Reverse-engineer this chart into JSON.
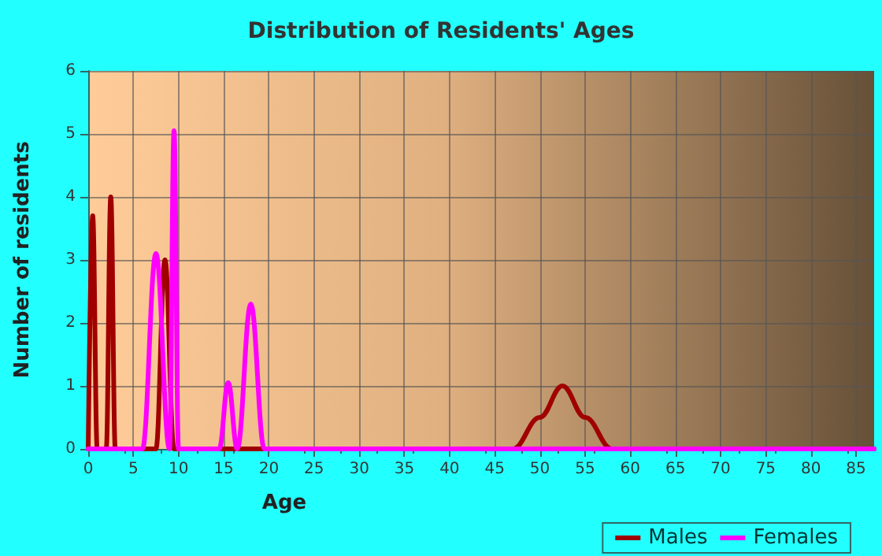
{
  "chart_data": {
    "type": "line",
    "title": "Distribution of Residents' Ages",
    "xlabel": "Age",
    "ylabel": "Number of residents",
    "series": [
      {
        "name": "Males",
        "color": "#a00000",
        "x": [
          0,
          0.5,
          1,
          2,
          2.5,
          3,
          4,
          7.5,
          8.5,
          9.5,
          10,
          47,
          50,
          52.5,
          55,
          58,
          87
        ],
        "values": [
          0,
          3.7,
          0,
          0,
          4,
          0,
          0,
          0,
          3,
          0,
          0,
          0,
          0.5,
          1,
          0.5,
          0,
          0
        ]
      },
      {
        "name": "Females",
        "color": "#ff00ff",
        "x": [
          0,
          6,
          7.5,
          9,
          9.5,
          10,
          14.5,
          15.5,
          16.5,
          18,
          19.5,
          87
        ],
        "values": [
          0,
          0,
          3.1,
          0,
          5.05,
          0,
          0,
          1.05,
          0,
          2.3,
          0,
          0
        ]
      }
    ],
    "xlim": [
      0,
      87
    ],
    "xticks": [
      0,
      5,
      10,
      15,
      20,
      25,
      30,
      35,
      40,
      45,
      50,
      55,
      60,
      65,
      70,
      75,
      80,
      85
    ],
    "ylim": [
      0,
      6
    ],
    "yticks": [
      0,
      1,
      2,
      3,
      4,
      5,
      6
    ],
    "grid": true,
    "legend": "bottom",
    "marker": "none",
    "line_style": "solid"
  }
}
